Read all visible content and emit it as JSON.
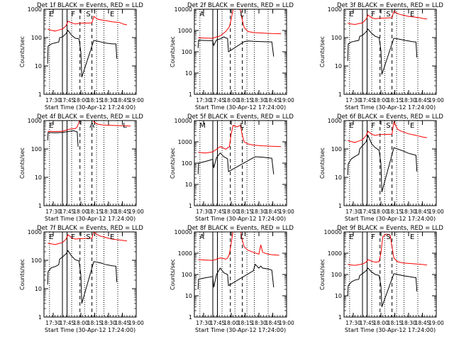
{
  "chart_data": [
    {
      "type": "line",
      "title": "Det 1f BLACK = Events, RED = LLD",
      "xlabel": "Start Time (30-Apr-12 17:24:00)",
      "ylabel": "Counts/sec",
      "yscale": "log",
      "ylim": [
        1,
        1000
      ],
      "ytick_labels": [
        "1",
        "10",
        "100",
        "1000"
      ],
      "xlim": [
        -4,
        96
      ],
      "xtick_labels": [
        "17:30",
        "17:45",
        "18:00",
        "18:15",
        "18:30",
        "18:45",
        "19:00"
      ],
      "region_letters": [
        "E",
        "F",
        "S",
        "E"
      ],
      "series": [
        {
          "color": "#ff0000",
          "x": [
            0,
            4,
            8,
            12,
            16,
            20,
            22,
            26,
            30,
            34,
            48,
            50,
            54,
            58,
            62,
            66,
            70,
            74,
            78,
            82,
            86
          ],
          "y": [
            200,
            180,
            170,
            185,
            200,
            260,
            380,
            330,
            300,
            320,
            330,
            560,
            450,
            420,
            400,
            380,
            360,
            350,
            340,
            300,
            280
          ]
        },
        {
          "color": "#000000",
          "x": [
            0,
            0.5,
            4,
            8,
            12,
            13,
            16,
            20,
            22,
            26,
            30,
            34,
            36,
            37,
            50,
            54,
            58,
            62,
            66,
            70,
            74,
            75
          ],
          " y": [
            12,
            50,
            60,
            65,
            70,
            100,
            105,
            140,
            180,
            120,
            95,
            90,
            30,
            4,
            80,
            75,
            70,
            65,
            62,
            60,
            60,
            18
          ]
        }
      ]
    }
  ]
}
